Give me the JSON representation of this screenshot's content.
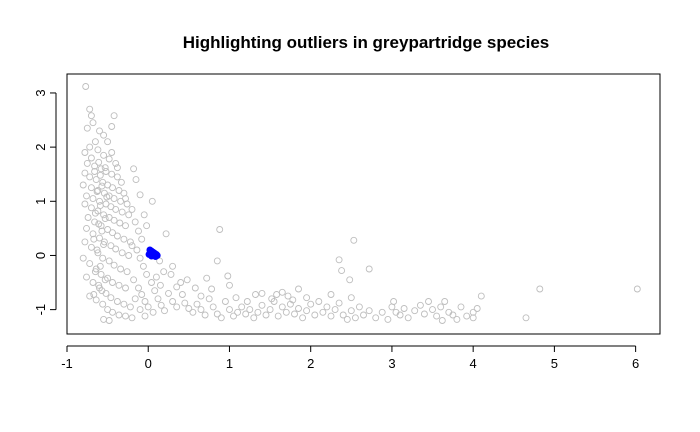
{
  "chart_data": {
    "type": "scatter",
    "title": "Highlighting outliers in greypartridge species",
    "xlabel": "",
    "ylabel": "",
    "xlim": [
      -1,
      6.3
    ],
    "ylim": [
      -1.45,
      3.35
    ],
    "x_ticks": [
      -1,
      0,
      1,
      2,
      3,
      4,
      5,
      6
    ],
    "y_ticks": [
      -1,
      0,
      1,
      2,
      3
    ],
    "grid": false,
    "legend": "none",
    "colors": {
      "main": "#bebebe",
      "outlier": "#0000ff"
    },
    "series": [
      {
        "role": "main",
        "marker": "open-circle",
        "points": [
          [
            -0.77,
            3.12
          ],
          [
            -0.72,
            2.7
          ],
          [
            -0.7,
            2.58
          ],
          [
            -0.75,
            2.35
          ],
          [
            -0.68,
            2.45
          ],
          [
            -0.6,
            2.3
          ],
          [
            -0.42,
            2.58
          ],
          [
            -0.45,
            2.38
          ],
          [
            -0.55,
            2.22
          ],
          [
            -0.5,
            2.1
          ],
          [
            -0.65,
            2.1
          ],
          [
            -0.72,
            2.0
          ],
          [
            -0.78,
            1.9
          ],
          [
            -0.62,
            1.95
          ],
          [
            -0.55,
            1.85
          ],
          [
            -0.48,
            1.78
          ],
          [
            -0.4,
            1.7
          ],
          [
            -0.7,
            1.8
          ],
          [
            -0.75,
            1.7
          ],
          [
            -0.66,
            1.65
          ],
          [
            -0.58,
            1.6
          ],
          [
            -0.52,
            1.55
          ],
          [
            -0.45,
            1.5
          ],
          [
            -0.38,
            1.45
          ],
          [
            -0.78,
            1.52
          ],
          [
            -0.72,
            1.45
          ],
          [
            -0.64,
            1.4
          ],
          [
            -0.56,
            1.35
          ],
          [
            -0.5,
            1.3
          ],
          [
            -0.44,
            1.25
          ],
          [
            -0.36,
            1.2
          ],
          [
            -0.3,
            1.15
          ],
          [
            -0.8,
            1.3
          ],
          [
            -0.7,
            1.25
          ],
          [
            -0.62,
            1.2
          ],
          [
            -0.54,
            1.15
          ],
          [
            -0.48,
            1.1
          ],
          [
            -0.42,
            1.05
          ],
          [
            -0.34,
            1.0
          ],
          [
            -0.26,
            0.95
          ],
          [
            -0.76,
            1.1
          ],
          [
            -0.68,
            1.05
          ],
          [
            -0.6,
            1.0
          ],
          [
            -0.52,
            0.95
          ],
          [
            -0.46,
            0.9
          ],
          [
            -0.4,
            0.85
          ],
          [
            -0.32,
            0.8
          ],
          [
            -0.24,
            0.75
          ],
          [
            -0.78,
            0.95
          ],
          [
            -0.7,
            0.88
          ],
          [
            -0.62,
            0.82
          ],
          [
            -0.55,
            0.75
          ],
          [
            -0.48,
            0.7
          ],
          [
            -0.42,
            0.65
          ],
          [
            -0.35,
            0.6
          ],
          [
            -0.28,
            0.55
          ],
          [
            -0.74,
            0.7
          ],
          [
            -0.66,
            0.62
          ],
          [
            -0.58,
            0.55
          ],
          [
            -0.5,
            0.48
          ],
          [
            -0.44,
            0.42
          ],
          [
            -0.38,
            0.36
          ],
          [
            -0.3,
            0.3
          ],
          [
            -0.22,
            0.25
          ],
          [
            -0.76,
            0.5
          ],
          [
            -0.68,
            0.4
          ],
          [
            -0.6,
            0.32
          ],
          [
            -0.54,
            0.25
          ],
          [
            -0.46,
            0.18
          ],
          [
            -0.4,
            0.12
          ],
          [
            -0.32,
            0.05
          ],
          [
            -0.24,
            0.0
          ],
          [
            -0.78,
            0.25
          ],
          [
            -0.7,
            0.15
          ],
          [
            -0.62,
            0.05
          ],
          [
            -0.56,
            -0.05
          ],
          [
            -0.48,
            -0.1
          ],
          [
            -0.42,
            -0.18
          ],
          [
            -0.34,
            -0.25
          ],
          [
            -0.26,
            -0.3
          ],
          [
            -0.8,
            -0.05
          ],
          [
            -0.72,
            -0.15
          ],
          [
            -0.64,
            -0.25
          ],
          [
            -0.58,
            -0.35
          ],
          [
            -0.5,
            -0.42
          ],
          [
            -0.44,
            -0.5
          ],
          [
            -0.36,
            -0.55
          ],
          [
            -0.28,
            -0.6
          ],
          [
            -0.76,
            -0.4
          ],
          [
            -0.68,
            -0.5
          ],
          [
            -0.6,
            -0.6
          ],
          [
            -0.52,
            -0.7
          ],
          [
            -0.46,
            -0.78
          ],
          [
            -0.38,
            -0.85
          ],
          [
            -0.3,
            -0.9
          ],
          [
            -0.22,
            -0.95
          ],
          [
            -0.72,
            -0.75
          ],
          [
            -0.64,
            -0.82
          ],
          [
            -0.56,
            -0.9
          ],
          [
            -0.5,
            -1.0
          ],
          [
            -0.44,
            -1.05
          ],
          [
            -0.36,
            -1.1
          ],
          [
            -0.28,
            -1.12
          ],
          [
            -0.2,
            -1.15
          ],
          [
            -0.55,
            -1.18
          ],
          [
            -0.48,
            -1.2
          ],
          [
            -0.66,
            1.55
          ],
          [
            -0.59,
            1.48
          ],
          [
            -0.53,
            1.62
          ],
          [
            -0.61,
            1.72
          ],
          [
            -0.57,
            1.28
          ],
          [
            -0.63,
            1.18
          ],
          [
            -0.51,
            1.08
          ],
          [
            -0.59,
            0.92
          ],
          [
            -0.65,
            0.78
          ],
          [
            -0.53,
            0.68
          ],
          [
            -0.61,
            0.58
          ],
          [
            -0.57,
            0.45
          ],
          [
            -0.67,
            0.3
          ],
          [
            -0.55,
            0.2
          ],
          [
            -0.63,
            0.1
          ],
          [
            -0.59,
            -0.2
          ],
          [
            -0.65,
            -0.3
          ],
          [
            -0.53,
            -0.45
          ],
          [
            -0.61,
            -0.55
          ],
          [
            -0.57,
            -0.65
          ],
          [
            -0.67,
            -0.72
          ],
          [
            -0.45,
            1.9
          ],
          [
            -0.38,
            1.62
          ],
          [
            -0.33,
            1.35
          ],
          [
            -0.28,
            1.05
          ],
          [
            -0.2,
            0.85
          ],
          [
            -0.16,
            0.62
          ],
          [
            -0.12,
            0.45
          ],
          [
            -0.08,
            0.3
          ],
          [
            -0.18,
            1.6
          ],
          [
            -0.15,
            1.4
          ],
          [
            -0.1,
            1.12
          ],
          [
            -0.05,
            0.75
          ],
          [
            -0.02,
            0.55
          ],
          [
            0.05,
            1.0
          ],
          [
            -0.2,
            0.18
          ],
          [
            -0.14,
            0.1
          ],
          [
            -0.1,
            -0.05
          ],
          [
            -0.06,
            -0.2
          ],
          [
            -0.02,
            -0.35
          ],
          [
            0.04,
            -0.5
          ],
          [
            -0.18,
            -0.45
          ],
          [
            -0.12,
            -0.6
          ],
          [
            -0.08,
            -0.72
          ],
          [
            -0.04,
            -0.85
          ],
          [
            0.0,
            -0.95
          ],
          [
            0.06,
            -1.05
          ],
          [
            -0.16,
            -0.8
          ],
          [
            -0.1,
            -1.0
          ],
          [
            -0.04,
            -1.12
          ],
          [
            0.08,
            -0.65
          ],
          [
            0.12,
            -0.8
          ],
          [
            0.16,
            -0.92
          ],
          [
            0.2,
            -1.02
          ],
          [
            0.1,
            -0.4
          ],
          [
            0.15,
            -0.55
          ],
          [
            0.22,
            0.4
          ],
          [
            0.14,
            -0.1
          ],
          [
            0.19,
            -0.3
          ],
          [
            0.25,
            -0.7
          ],
          [
            0.3,
            -0.85
          ],
          [
            0.35,
            -0.95
          ],
          [
            0.28,
            -0.35
          ],
          [
            0.35,
            -0.58
          ],
          [
            0.42,
            -0.72
          ],
          [
            0.4,
            -0.5
          ],
          [
            0.45,
            -0.88
          ],
          [
            0.5,
            -0.98
          ],
          [
            0.55,
            -1.05
          ],
          [
            0.6,
            -0.9
          ],
          [
            0.65,
            -1.0
          ],
          [
            0.7,
            -1.1
          ],
          [
            0.75,
            -0.8
          ],
          [
            0.8,
            -0.95
          ],
          [
            0.85,
            -1.08
          ],
          [
            0.9,
            -1.15
          ],
          [
            0.95,
            -0.85
          ],
          [
            1.0,
            -1.0
          ],
          [
            1.05,
            -1.12
          ],
          [
            1.1,
            -1.05
          ],
          [
            0.88,
            0.48
          ],
          [
            0.85,
            -0.1
          ],
          [
            0.98,
            -0.38
          ],
          [
            1.0,
            -0.55
          ],
          [
            0.72,
            -0.42
          ],
          [
            0.58,
            -0.6
          ],
          [
            1.15,
            -0.95
          ],
          [
            1.2,
            -1.08
          ],
          [
            1.25,
            -1.0
          ],
          [
            1.3,
            -1.15
          ],
          [
            1.35,
            -1.05
          ],
          [
            1.4,
            -0.92
          ],
          [
            1.45,
            -1.1
          ],
          [
            1.5,
            -1.0
          ],
          [
            1.55,
            -0.85
          ],
          [
            1.6,
            -1.12
          ],
          [
            1.65,
            -0.95
          ],
          [
            1.7,
            -1.05
          ],
          [
            1.75,
            -0.9
          ],
          [
            1.8,
            -1.08
          ],
          [
            1.85,
            -0.98
          ],
          [
            1.9,
            -1.15
          ],
          [
            1.95,
            -1.02
          ],
          [
            2.0,
            -0.9
          ],
          [
            2.05,
            -1.1
          ],
          [
            2.1,
            -0.85
          ],
          [
            2.15,
            -1.05
          ],
          [
            2.2,
            -0.95
          ],
          [
            2.25,
            -1.12
          ],
          [
            2.3,
            -1.0
          ],
          [
            2.35,
            -0.88
          ],
          [
            2.4,
            -1.1
          ],
          [
            2.45,
            -1.18
          ],
          [
            2.5,
            -1.02
          ],
          [
            2.55,
            -1.15
          ],
          [
            1.65,
            -0.68
          ],
          [
            1.72,
            -0.75
          ],
          [
            1.85,
            -0.62
          ],
          [
            1.95,
            -0.78
          ],
          [
            2.25,
            -0.72
          ],
          [
            1.4,
            -0.7
          ],
          [
            1.52,
            -0.8
          ],
          [
            2.35,
            -0.08
          ],
          [
            2.38,
            -0.28
          ],
          [
            2.48,
            -0.45
          ],
          [
            2.53,
            0.28
          ],
          [
            2.72,
            -0.25
          ],
          [
            2.5,
            -0.78
          ],
          [
            2.6,
            -0.95
          ],
          [
            2.65,
            -1.1
          ],
          [
            2.72,
            -1.02
          ],
          [
            2.8,
            -1.15
          ],
          [
            2.88,
            -1.05
          ],
          [
            2.95,
            -1.18
          ],
          [
            3.0,
            -0.95
          ],
          [
            3.05,
            -1.05
          ],
          [
            3.02,
            -0.85
          ],
          [
            3.1,
            -1.1
          ],
          [
            3.15,
            -0.98
          ],
          [
            3.2,
            -1.15
          ],
          [
            3.28,
            -1.02
          ],
          [
            3.35,
            -0.92
          ],
          [
            3.4,
            -1.08
          ],
          [
            3.45,
            -0.85
          ],
          [
            3.5,
            -1.0
          ],
          [
            3.55,
            -1.12
          ],
          [
            3.6,
            -0.95
          ],
          [
            3.65,
            -0.85
          ],
          [
            3.7,
            -1.05
          ],
          [
            3.75,
            -1.1
          ],
          [
            3.8,
            -1.18
          ],
          [
            3.62,
            -1.2
          ],
          [
            3.85,
            -0.95
          ],
          [
            3.92,
            -1.12
          ],
          [
            4.0,
            -1.05
          ],
          [
            4.05,
            -0.98
          ],
          [
            4.1,
            -0.75
          ],
          [
            4.0,
            -1.15
          ],
          [
            4.65,
            -1.15
          ],
          [
            4.82,
            -0.62
          ],
          [
            6.02,
            -0.62
          ],
          [
            0.3,
            -0.2
          ],
          [
            0.48,
            -0.45
          ],
          [
            0.65,
            -0.75
          ],
          [
            0.78,
            -0.62
          ],
          [
            1.08,
            -0.78
          ],
          [
            1.22,
            -0.85
          ],
          [
            1.32,
            -0.72
          ],
          [
            1.58,
            -0.72
          ],
          [
            1.78,
            -0.82
          ]
        ]
      },
      {
        "role": "outlier",
        "marker": "filled-circle",
        "points": [
          [
            0.02,
            0.1
          ],
          [
            0.04,
            0.08
          ],
          [
            0.06,
            0.06
          ],
          [
            0.08,
            0.04
          ],
          [
            0.1,
            0.02
          ],
          [
            0.03,
            0.05
          ],
          [
            0.05,
            0.02
          ],
          [
            0.07,
            0.0
          ],
          [
            0.09,
            -0.02
          ],
          [
            0.11,
            0.0
          ],
          [
            0.01,
            0.02
          ],
          [
            0.04,
            -0.01
          ]
        ]
      }
    ]
  }
}
